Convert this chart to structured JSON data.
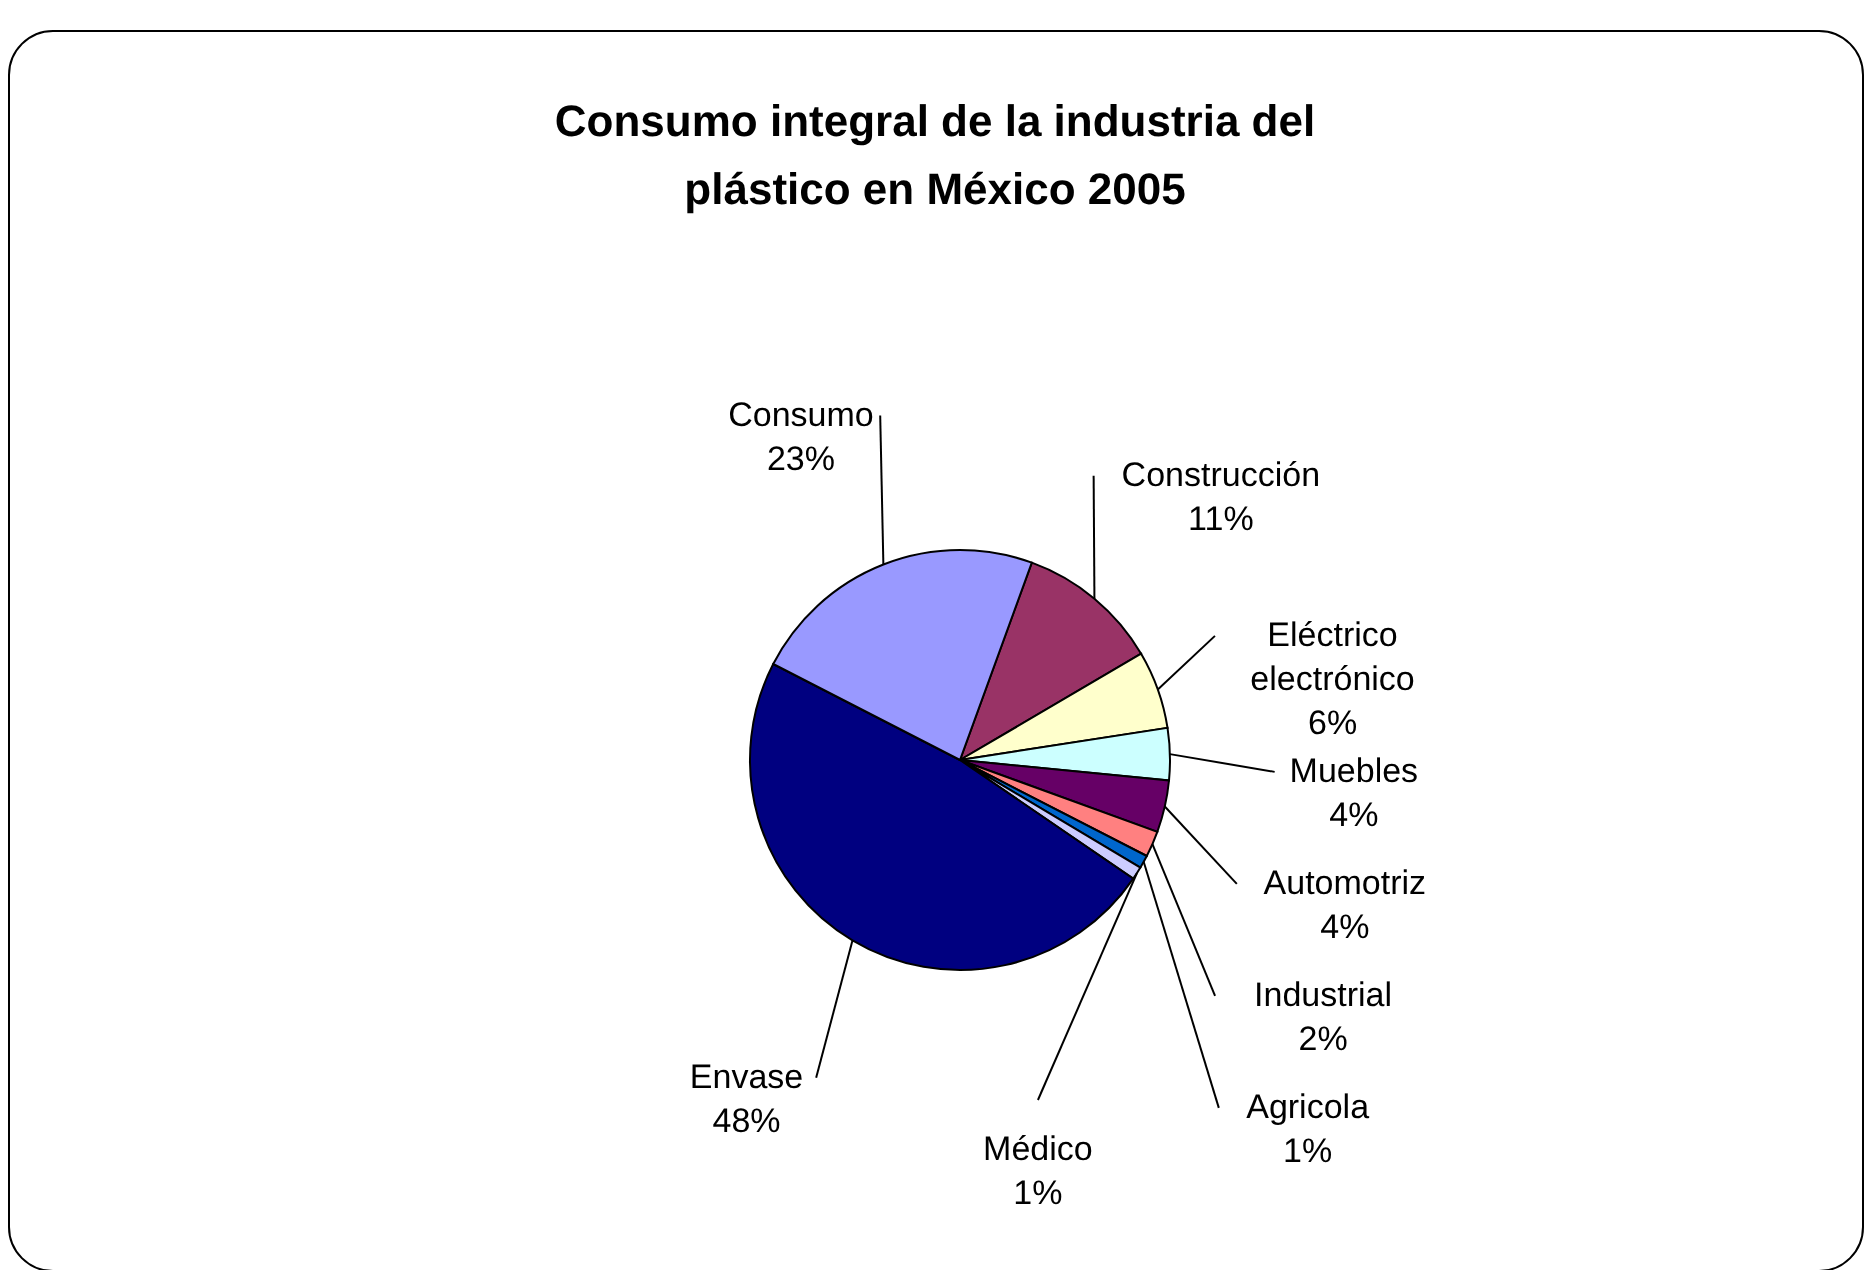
{
  "chart_data": {
    "type": "pie",
    "title": "Consumo integral de la industria del plástico en México 2005",
    "categories": [
      "Construcción",
      "Eléctrico electrónico",
      "Muebles",
      "Automotriz",
      "Industrial",
      "Agricola",
      "Médico",
      "Envase",
      "Consumo"
    ],
    "values": [
      11,
      6,
      4,
      4,
      2,
      1,
      1,
      48,
      23
    ],
    "value_labels": [
      "11%",
      "6%",
      "4%",
      "4%",
      "2%",
      "1%",
      "1%",
      "48%",
      "23%"
    ],
    "colors": [
      "#993366",
      "#ffffcc",
      "#ccffff",
      "#660066",
      "#ff8080",
      "#0066cc",
      "#ccccff",
      "#000080",
      "#9999ff"
    ]
  }
}
